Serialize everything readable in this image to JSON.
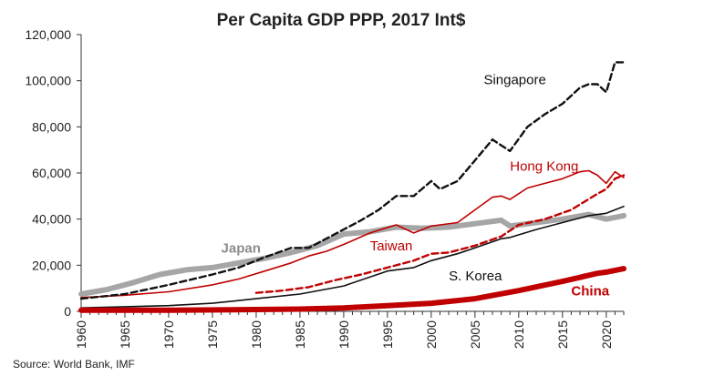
{
  "chart_data": {
    "type": "line",
    "title": "Per Capita GDP PPP, 2017 Int$",
    "source": "Source: World Bank, IMF",
    "xlabel": "",
    "ylabel": "",
    "xlim": [
      1960,
      2022
    ],
    "ylim": [
      0,
      120000
    ],
    "y_ticks": [
      0,
      20000,
      40000,
      60000,
      80000,
      100000,
      120000
    ],
    "y_tick_labels": [
      "0",
      "20,000",
      "40,000",
      "60,000",
      "80,000",
      "100,000",
      "120,000"
    ],
    "x_ticks": [
      1960,
      1965,
      1970,
      1975,
      1980,
      1985,
      1990,
      1995,
      2000,
      2005,
      2010,
      2015,
      2020
    ],
    "x_tick_labels": [
      "1960",
      "1965",
      "1970",
      "1975",
      "1980",
      "1985",
      "1990",
      "1995",
      "2000",
      "2005",
      "2010",
      "2015",
      "2020"
    ],
    "grid": false,
    "legend": "none (direct labels)",
    "series": [
      {
        "name": "Japan",
        "color": "#a6a6a6",
        "style": "solid-thick",
        "x": [
          1960,
          1963,
          1966,
          1969,
          1972,
          1975,
          1978,
          1981,
          1984,
          1987,
          1990,
          1993,
          1996,
          1999,
          2002,
          2005,
          2008,
          2009,
          2012,
          2015,
          2018,
          2020,
          2022
        ],
        "y": [
          7500,
          9500,
          12500,
          16000,
          18000,
          19000,
          21000,
          23000,
          25500,
          28500,
          33500,
          34500,
          36500,
          36000,
          36500,
          38000,
          39500,
          37000,
          38500,
          40000,
          42000,
          40000,
          41500
        ]
      },
      {
        "name": "Singapore",
        "color": "#111111",
        "style": "dashed",
        "x": [
          1960,
          1965,
          1970,
          1975,
          1978,
          1981,
          1984,
          1986,
          1988,
          1990,
          1992,
          1994,
          1996,
          1998,
          2000,
          2001,
          2003,
          2005,
          2007,
          2009,
          2011,
          2013,
          2015,
          2017,
          2018,
          2019,
          2020,
          2021,
          2022
        ],
        "y": [
          5500,
          7500,
          11500,
          16000,
          19000,
          23500,
          27500,
          27500,
          31500,
          35500,
          39500,
          44000,
          50000,
          50000,
          56500,
          53000,
          56500,
          65500,
          74500,
          69500,
          80000,
          85500,
          90000,
          97000,
          98500,
          98500,
          95000,
          108000,
          108000
        ]
      },
      {
        "name": "Hong Kong",
        "color": "#c00000",
        "style": "solid-thin",
        "x": [
          1960,
          1965,
          1970,
          1975,
          1978,
          1981,
          1984,
          1986,
          1988,
          1990,
          1993,
          1996,
          1998,
          2000,
          2003,
          2005,
          2007,
          2008,
          2009,
          2011,
          2013,
          2015,
          2017,
          2018,
          2019,
          2020,
          2021,
          2022
        ],
        "y": [
          6000,
          7000,
          8500,
          11500,
          14000,
          17500,
          21000,
          24000,
          26000,
          29000,
          34000,
          37500,
          34000,
          37000,
          38500,
          44000,
          49500,
          50000,
          48500,
          53500,
          55500,
          57500,
          60500,
          61000,
          59000,
          55500,
          60500,
          58000
        ]
      },
      {
        "name": "Taiwan",
        "color": "#c00000",
        "style": "dashed",
        "x": [
          1980,
          1983,
          1986,
          1989,
          1992,
          1995,
          1998,
          2000,
          2002,
          2005,
          2008,
          2010,
          2013,
          2016,
          2019,
          2020,
          2021,
          2022
        ],
        "y": [
          8000,
          9000,
          10500,
          13500,
          16000,
          19000,
          22000,
          25000,
          25500,
          28500,
          32500,
          37500,
          40000,
          44000,
          51000,
          53000,
          57500,
          59000
        ]
      },
      {
        "name": "S. Korea",
        "color": "#111111",
        "style": "solid-thin",
        "x": [
          1960,
          1965,
          1970,
          1975,
          1980,
          1985,
          1990,
          1995,
          1998,
          2000,
          2003,
          2005,
          2008,
          2009,
          2012,
          2015,
          2018,
          2019,
          2020,
          2022
        ],
        "y": [
          1500,
          2000,
          2500,
          3500,
          5500,
          7500,
          11000,
          17500,
          19000,
          22000,
          25000,
          27500,
          31500,
          32000,
          35500,
          38500,
          41500,
          42000,
          42500,
          45500
        ]
      },
      {
        "name": "China",
        "color": "#c00000",
        "style": "solid-thick",
        "x": [
          1960,
          1970,
          1980,
          1985,
          1990,
          1995,
          2000,
          2005,
          2010,
          2015,
          2019,
          2020,
          2022
        ],
        "y": [
          500,
          500,
          800,
          1000,
          1500,
          2500,
          3500,
          5500,
          9000,
          13000,
          16500,
          17000,
          18500
        ]
      }
    ],
    "annotations": [
      {
        "text": "Singapore",
        "series": "Singapore",
        "x": 2006,
        "y": 98500
      },
      {
        "text": "Hong Kong",
        "series": "Hong Kong",
        "x": 2009,
        "y": 61000
      },
      {
        "text": "Japan",
        "series": "Japan",
        "x": 1976,
        "y": 25500
      },
      {
        "text": "Taiwan",
        "series": "Taiwan",
        "x": 1993,
        "y": 26500
      },
      {
        "text": "S. Korea",
        "series": "S. Korea",
        "x": 2002,
        "y": 13500
      },
      {
        "text": "China",
        "series": "China",
        "x": 2016,
        "y": 7000
      }
    ]
  }
}
